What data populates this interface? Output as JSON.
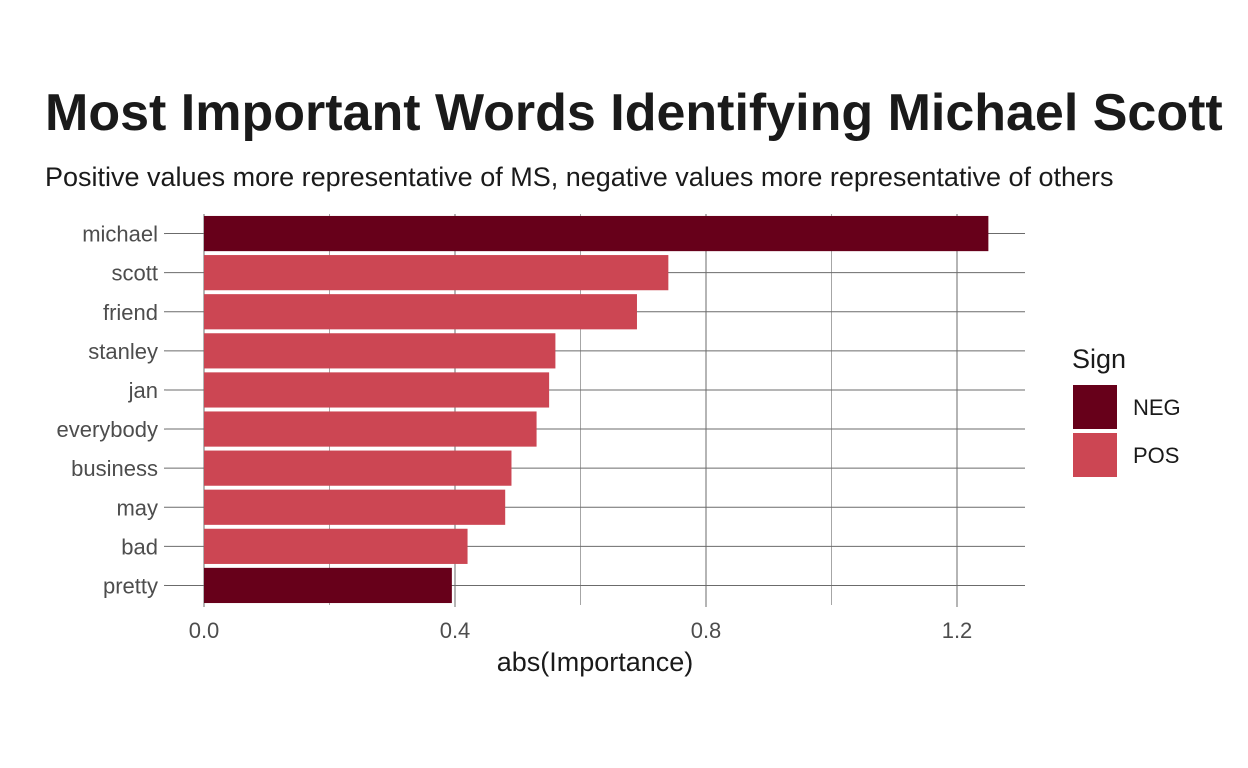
{
  "chart_data": {
    "type": "bar",
    "orientation": "horizontal",
    "title": "Most Important Words Identifying Michael Scott",
    "subtitle": "Positive values more representative of MS, negative values more representative of others",
    "xlabel": "abs(Importance)",
    "ylabel": "",
    "xlim": [
      0,
      1.31
    ],
    "x_ticks": [
      0.0,
      0.4,
      0.8,
      1.2
    ],
    "x_tick_labels": [
      "0.0",
      "0.4",
      "0.8",
      "1.2"
    ],
    "grid": true,
    "legend": {
      "title": "Sign",
      "placement": "right",
      "entries": [
        {
          "label": "NEG",
          "color": "#67001a"
        },
        {
          "label": "POS",
          "color": "#cc4653"
        }
      ]
    },
    "categories": [
      "michael",
      "scott",
      "friend",
      "stanley",
      "jan",
      "everybody",
      "business",
      "may",
      "bad",
      "pretty"
    ],
    "values": [
      1.25,
      0.74,
      0.69,
      0.56,
      0.55,
      0.53,
      0.49,
      0.48,
      0.42,
      0.395
    ],
    "signs": [
      "NEG",
      "POS",
      "POS",
      "POS",
      "POS",
      "POS",
      "POS",
      "POS",
      "POS",
      "NEG"
    ]
  }
}
